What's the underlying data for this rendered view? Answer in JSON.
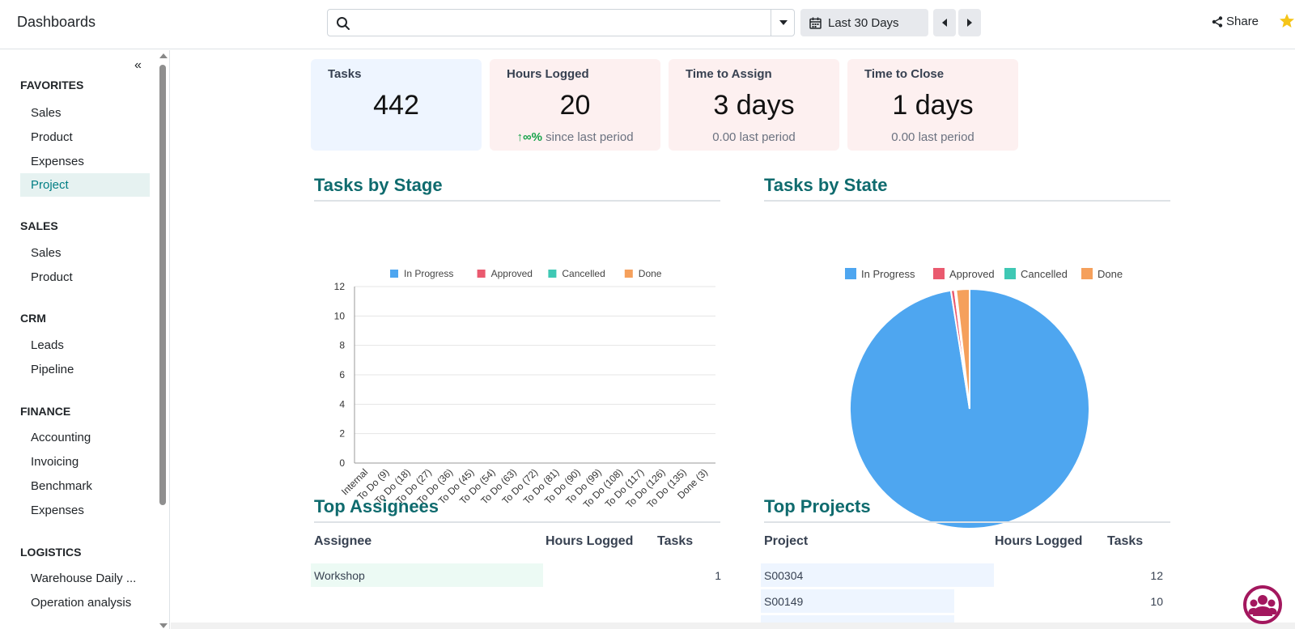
{
  "app": {
    "title": "Dashboards"
  },
  "topbar": {
    "search_placeholder": "",
    "date_range": "Last 30 Days",
    "share_label": "Share"
  },
  "sidebar": {
    "collapse_glyph": "«",
    "sections": [
      {
        "title": "FAVORITES",
        "items": [
          "Sales",
          "Product",
          "Expenses",
          "Project"
        ]
      },
      {
        "title": "SALES",
        "items": [
          "Sales",
          "Product"
        ]
      },
      {
        "title": "CRM",
        "items": [
          "Leads",
          "Pipeline"
        ]
      },
      {
        "title": "FINANCE",
        "items": [
          "Accounting",
          "Invoicing",
          "Benchmark",
          "Expenses"
        ]
      },
      {
        "title": "LOGISTICS",
        "items": [
          "Warehouse Daily ...",
          "Operation analysis"
        ]
      }
    ],
    "active_item": "Project"
  },
  "kpis": [
    {
      "title": "Tasks",
      "value": "442",
      "sub": "",
      "bg": "#eef5ff"
    },
    {
      "title": "Hours Logged",
      "value": "20",
      "sub_prefix": "↑∞%",
      "sub": "since last period",
      "bg": "#fdf0f0"
    },
    {
      "title": "Time to Assign",
      "value": "3 days",
      "sub": "0.00 last period",
      "bg": "#fdf0f0"
    },
    {
      "title": "Time to Close",
      "value": "1 days",
      "sub": "0.00 last period",
      "bg": "#fdf0f0"
    }
  ],
  "sections": {
    "tasks_by_stage": "Tasks by Stage",
    "tasks_by_state": "Tasks by State",
    "top_assignees": "Top Assignees",
    "top_projects": "Top Projects"
  },
  "chart_data": [
    {
      "type": "bar",
      "categories": [
        "Internal",
        "To Do (9)",
        "To Do (18)",
        "To Do (27)",
        "To Do (36)",
        "To Do (45)",
        "To Do (54)",
        "To Do (63)",
        "To Do (72)",
        "To Do (81)",
        "To Do (90)",
        "To Do (99)",
        "To Do (108)",
        "To Do (117)",
        "To Do (126)",
        "To Do (135)",
        "Done (3)"
      ],
      "series": [
        {
          "name": "In Progress",
          "values": [
            0,
            0,
            0,
            0,
            0,
            0,
            0,
            0,
            0,
            0,
            0,
            0,
            0,
            0,
            0,
            0,
            0
          ]
        },
        {
          "name": "Approved",
          "values": [
            0,
            0,
            0,
            0,
            0,
            0,
            0,
            0,
            0,
            0,
            0,
            0,
            0,
            0,
            0,
            0,
            0
          ]
        },
        {
          "name": "Cancelled",
          "values": [
            0,
            0,
            0,
            0,
            0,
            0,
            0,
            0,
            0,
            0,
            0,
            0,
            0,
            0,
            0,
            0,
            0
          ]
        },
        {
          "name": "Done",
          "values": [
            0,
            0,
            0,
            0,
            0,
            0,
            0,
            0,
            0,
            0,
            0,
            0,
            0,
            0,
            0,
            0,
            0
          ]
        }
      ],
      "ylim": [
        0,
        12
      ],
      "yticks": [
        0,
        2,
        4,
        6,
        8,
        10,
        12
      ],
      "grid": true,
      "legend": "top-center",
      "colors": [
        "#4ea6f0",
        "#ea5a6f",
        "#3fc8b4",
        "#f5a05c"
      ]
    },
    {
      "type": "pie",
      "slices": [
        {
          "name": "In Progress",
          "value": 97.5
        },
        {
          "name": "Approved",
          "value": 0.5
        },
        {
          "name": "Cancelled",
          "value": 0.2
        },
        {
          "name": "Done",
          "value": 1.8
        }
      ],
      "legend": "top-center",
      "colors": [
        "#4ea6f0",
        "#ea5a6f",
        "#3fc8b4",
        "#f5a05c"
      ]
    }
  ],
  "top_assignees": {
    "headers": [
      "Assignee",
      "Hours Logged",
      "Tasks"
    ],
    "rows": [
      {
        "name": "Workshop",
        "hours": "",
        "tasks": "1",
        "fill": 1.0
      }
    ]
  },
  "top_projects": {
    "headers": [
      "Project",
      "Hours Logged",
      "Tasks"
    ],
    "rows": [
      {
        "name": "S00304",
        "hours": "",
        "tasks": "12",
        "fill": 1.0
      },
      {
        "name": "S00149",
        "hours": "",
        "tasks": "10",
        "fill": 0.83
      }
    ]
  }
}
